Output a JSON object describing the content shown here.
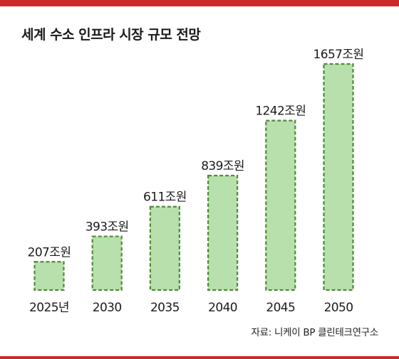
{
  "title": "세계 수소 인프라 시장 규모 전망",
  "source": "자료: 니케이 BP 클린테크연구소",
  "colors": {
    "accent_bar": "#cc2a2a",
    "bar_fill": "#b8e0ad",
    "bar_border": "#4f8a3a",
    "text": "#1a1a1a"
  },
  "chart_data": {
    "type": "bar",
    "title": "세계 수소 인프라 시장 규모 전망",
    "categories": [
      "2025년",
      "2030",
      "2035",
      "2040",
      "2045",
      "2050"
    ],
    "values": [
      207,
      393,
      611,
      839,
      1242,
      1657
    ],
    "data_labels": [
      "207조원",
      "393조원",
      "611조원",
      "839조원",
      "1242조원",
      "1657조원"
    ],
    "ylim": [
      0,
      1657
    ],
    "xlabel": "",
    "ylabel": "",
    "grid": false,
    "legend": "none"
  }
}
